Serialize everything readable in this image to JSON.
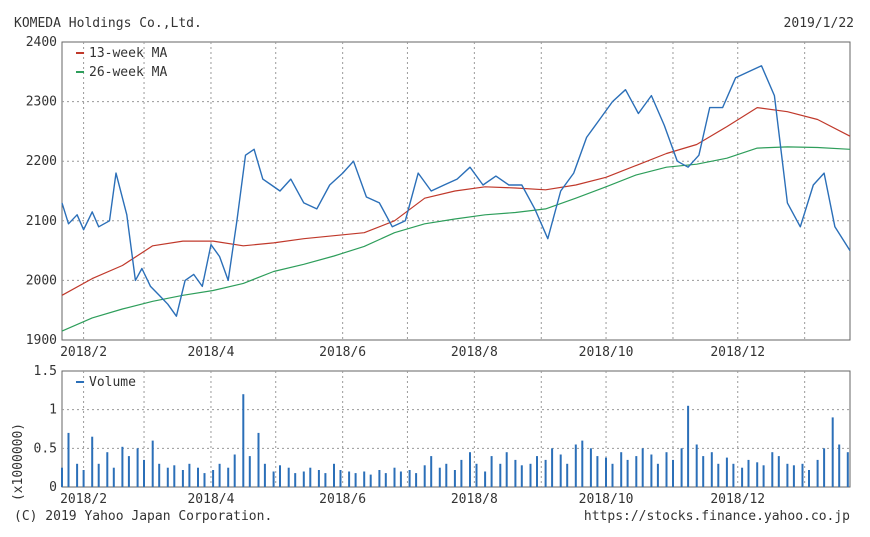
{
  "header": {
    "company": "KOMEDA Holdings Co.,Ltd.",
    "date": "2019/1/22"
  },
  "footer": {
    "copyright": "(C) 2019 Yahoo Japan Corporation.",
    "url": "https://stocks.finance.yahoo.co.jp"
  },
  "colors": {
    "price": "#2b6fb8",
    "ma13": "#c0392b",
    "ma26": "#2e9e5b",
    "volume": "#2b6fb8",
    "grid": "#9a9a9a"
  },
  "chart_data": [
    {
      "type": "line",
      "ylim": [
        1900,
        2400
      ],
      "yticks": [
        "1900",
        "2000",
        "2100",
        "2200",
        "2300",
        "2400"
      ],
      "xlim": [
        "2018-01-22",
        "2019-01-22"
      ],
      "xticks": [
        {
          "date": "2018-02-01",
          "label": "2018/2"
        },
        {
          "date": "2018-04-01",
          "label": "2018/4"
        },
        {
          "date": "2018-06-01",
          "label": "2018/6"
        },
        {
          "date": "2018-08-01",
          "label": "2018/8"
        },
        {
          "date": "2018-10-01",
          "label": "2018/10"
        },
        {
          "date": "2018-12-01",
          "label": "2018/12"
        }
      ],
      "grid": true,
      "legend_position": "top-left",
      "series": [
        {
          "name": "13-week MA",
          "color_key": "ma13",
          "x": [
            "2018-01-22",
            "2018-02-05",
            "2018-02-19",
            "2018-03-05",
            "2018-03-19",
            "2018-04-02",
            "2018-04-16",
            "2018-04-30",
            "2018-05-14",
            "2018-05-28",
            "2018-06-11",
            "2018-06-25",
            "2018-07-09",
            "2018-07-23",
            "2018-08-06",
            "2018-08-20",
            "2018-09-03",
            "2018-09-17",
            "2018-10-01",
            "2018-10-15",
            "2018-10-29",
            "2018-11-12",
            "2018-11-26",
            "2018-12-10",
            "2018-12-24",
            "2019-01-07",
            "2019-01-22"
          ],
          "values": [
            1975,
            2003,
            2025,
            2058,
            2066,
            2066,
            2058,
            2063,
            2070,
            2075,
            2080,
            2100,
            2138,
            2150,
            2157,
            2155,
            2152,
            2160,
            2173,
            2193,
            2213,
            2228,
            2258,
            2290,
            2283,
            2270,
            2242
          ]
        },
        {
          "name": "26-week MA",
          "color_key": "ma26",
          "x": [
            "2018-01-22",
            "2018-02-05",
            "2018-02-19",
            "2018-03-05",
            "2018-03-19",
            "2018-04-02",
            "2018-04-16",
            "2018-04-30",
            "2018-05-14",
            "2018-05-28",
            "2018-06-11",
            "2018-06-25",
            "2018-07-09",
            "2018-07-23",
            "2018-08-06",
            "2018-08-20",
            "2018-09-03",
            "2018-09-17",
            "2018-10-01",
            "2018-10-15",
            "2018-10-29",
            "2018-11-12",
            "2018-11-26",
            "2018-12-10",
            "2018-12-24",
            "2019-01-07",
            "2019-01-22"
          ],
          "values": [
            1915,
            1937,
            1952,
            1965,
            1975,
            1983,
            1995,
            2015,
            2027,
            2041,
            2057,
            2080,
            2095,
            2103,
            2110,
            2114,
            2120,
            2138,
            2157,
            2177,
            2190,
            2195,
            2205,
            2222,
            2224,
            2223,
            2220
          ]
        },
        {
          "name": "Price",
          "color_key": "price",
          "x": [
            "2018-01-22",
            "2018-01-25",
            "2018-01-29",
            "2018-02-01",
            "2018-02-05",
            "2018-02-08",
            "2018-02-13",
            "2018-02-16",
            "2018-02-21",
            "2018-02-25",
            "2018-02-28",
            "2018-03-04",
            "2018-03-08",
            "2018-03-12",
            "2018-03-16",
            "2018-03-20",
            "2018-03-24",
            "2018-03-28",
            "2018-04-01",
            "2018-04-05",
            "2018-04-09",
            "2018-04-13",
            "2018-04-17",
            "2018-04-21",
            "2018-04-25",
            "2018-04-29",
            "2018-05-03",
            "2018-05-08",
            "2018-05-14",
            "2018-05-20",
            "2018-05-26",
            "2018-06-01",
            "2018-06-06",
            "2018-06-12",
            "2018-06-18",
            "2018-06-24",
            "2018-06-30",
            "2018-07-06",
            "2018-07-12",
            "2018-07-18",
            "2018-07-24",
            "2018-07-30",
            "2018-08-05",
            "2018-08-11",
            "2018-08-17",
            "2018-08-23",
            "2018-08-29",
            "2018-09-04",
            "2018-09-10",
            "2018-09-16",
            "2018-09-22",
            "2018-09-28",
            "2018-10-04",
            "2018-10-10",
            "2018-10-16",
            "2018-10-22",
            "2018-10-28",
            "2018-11-03",
            "2018-11-08",
            "2018-11-13",
            "2018-11-18",
            "2018-11-24",
            "2018-11-30",
            "2018-12-06",
            "2018-12-12",
            "2018-12-18",
            "2018-12-24",
            "2018-12-30",
            "2019-01-05",
            "2019-01-10",
            "2019-01-15",
            "2019-01-22"
          ],
          "values": [
            2130,
            2095,
            2110,
            2085,
            2115,
            2090,
            2100,
            2180,
            2110,
            2000,
            2020,
            1990,
            1975,
            1960,
            1940,
            2000,
            2010,
            1990,
            2060,
            2040,
            2000,
            2100,
            2210,
            2220,
            2170,
            2160,
            2150,
            2170,
            2130,
            2120,
            2160,
            2180,
            2200,
            2140,
            2130,
            2090,
            2100,
            2180,
            2150,
            2160,
            2170,
            2190,
            2160,
            2175,
            2160,
            2160,
            2120,
            2070,
            2150,
            2180,
            2240,
            2270,
            2300,
            2320,
            2280,
            2310,
            2260,
            2200,
            2190,
            2210,
            2290,
            2290,
            2340,
            2350,
            2360,
            2310,
            2130,
            2090,
            2160,
            2180,
            2090,
            2050
          ]
        }
      ]
    },
    {
      "type": "bar",
      "ylim": [
        0,
        1.5
      ],
      "yticks": [
        "0",
        "0.5",
        "1",
        "1.5"
      ],
      "ylabel": "(x1000000)",
      "legend_position": "top-left",
      "series": [
        {
          "name": "Volume",
          "color_key": "volume",
          "x": [
            "2018-01-22",
            "2018-01-25",
            "2018-01-29",
            "2018-02-01",
            "2018-02-05",
            "2018-02-08",
            "2018-02-12",
            "2018-02-15",
            "2018-02-19",
            "2018-02-22",
            "2018-02-26",
            "2018-03-01",
            "2018-03-05",
            "2018-03-08",
            "2018-03-12",
            "2018-03-15",
            "2018-03-19",
            "2018-03-22",
            "2018-03-26",
            "2018-03-29",
            "2018-04-02",
            "2018-04-05",
            "2018-04-09",
            "2018-04-12",
            "2018-04-16",
            "2018-04-19",
            "2018-04-23",
            "2018-04-26",
            "2018-04-30",
            "2018-05-03",
            "2018-05-07",
            "2018-05-10",
            "2018-05-14",
            "2018-05-17",
            "2018-05-21",
            "2018-05-24",
            "2018-05-28",
            "2018-05-31",
            "2018-06-04",
            "2018-06-07",
            "2018-06-11",
            "2018-06-14",
            "2018-06-18",
            "2018-06-21",
            "2018-06-25",
            "2018-06-28",
            "2018-07-02",
            "2018-07-05",
            "2018-07-09",
            "2018-07-12",
            "2018-07-16",
            "2018-07-19",
            "2018-07-23",
            "2018-07-26",
            "2018-07-30",
            "2018-08-02",
            "2018-08-06",
            "2018-08-09",
            "2018-08-13",
            "2018-08-16",
            "2018-08-20",
            "2018-08-23",
            "2018-08-27",
            "2018-08-30",
            "2018-09-03",
            "2018-09-06",
            "2018-09-10",
            "2018-09-13",
            "2018-09-17",
            "2018-09-20",
            "2018-09-24",
            "2018-09-27",
            "2018-10-01",
            "2018-10-04",
            "2018-10-08",
            "2018-10-11",
            "2018-10-15",
            "2018-10-18",
            "2018-10-22",
            "2018-10-25",
            "2018-10-29",
            "2018-11-01",
            "2018-11-05",
            "2018-11-08",
            "2018-11-12",
            "2018-11-15",
            "2018-11-19",
            "2018-11-22",
            "2018-11-26",
            "2018-11-29",
            "2018-12-03",
            "2018-12-06",
            "2018-12-10",
            "2018-12-13",
            "2018-12-17",
            "2018-12-20",
            "2018-12-24",
            "2018-12-27",
            "2018-12-31",
            "2019-01-03",
            "2019-01-07",
            "2019-01-10",
            "2019-01-14",
            "2019-01-17",
            "2019-01-21"
          ],
          "values": [
            0.25,
            0.7,
            0.3,
            0.22,
            0.65,
            0.3,
            0.45,
            0.25,
            0.52,
            0.4,
            0.5,
            0.35,
            0.6,
            0.3,
            0.25,
            0.28,
            0.22,
            0.3,
            0.25,
            0.18,
            0.22,
            0.3,
            0.25,
            0.42,
            1.2,
            0.4,
            0.7,
            0.3,
            0.2,
            0.28,
            0.25,
            0.18,
            0.2,
            0.25,
            0.22,
            0.18,
            0.3,
            0.22,
            0.2,
            0.18,
            0.2,
            0.16,
            0.22,
            0.18,
            0.25,
            0.2,
            0.22,
            0.18,
            0.28,
            0.4,
            0.25,
            0.3,
            0.22,
            0.35,
            0.45,
            0.3,
            0.2,
            0.4,
            0.3,
            0.45,
            0.35,
            0.28,
            0.3,
            0.4,
            0.35,
            0.5,
            0.42,
            0.3,
            0.55,
            0.6,
            0.5,
            0.4,
            0.38,
            0.3,
            0.45,
            0.35,
            0.4,
            0.5,
            0.42,
            0.3,
            0.45,
            0.35,
            0.5,
            1.05,
            0.55,
            0.4,
            0.45,
            0.3,
            0.38,
            0.3,
            0.25,
            0.35,
            0.32,
            0.28,
            0.45,
            0.4,
            0.3,
            0.28,
            0.3,
            0.22,
            0.35,
            0.5,
            0.9,
            0.55,
            0.45
          ]
        }
      ]
    }
  ]
}
